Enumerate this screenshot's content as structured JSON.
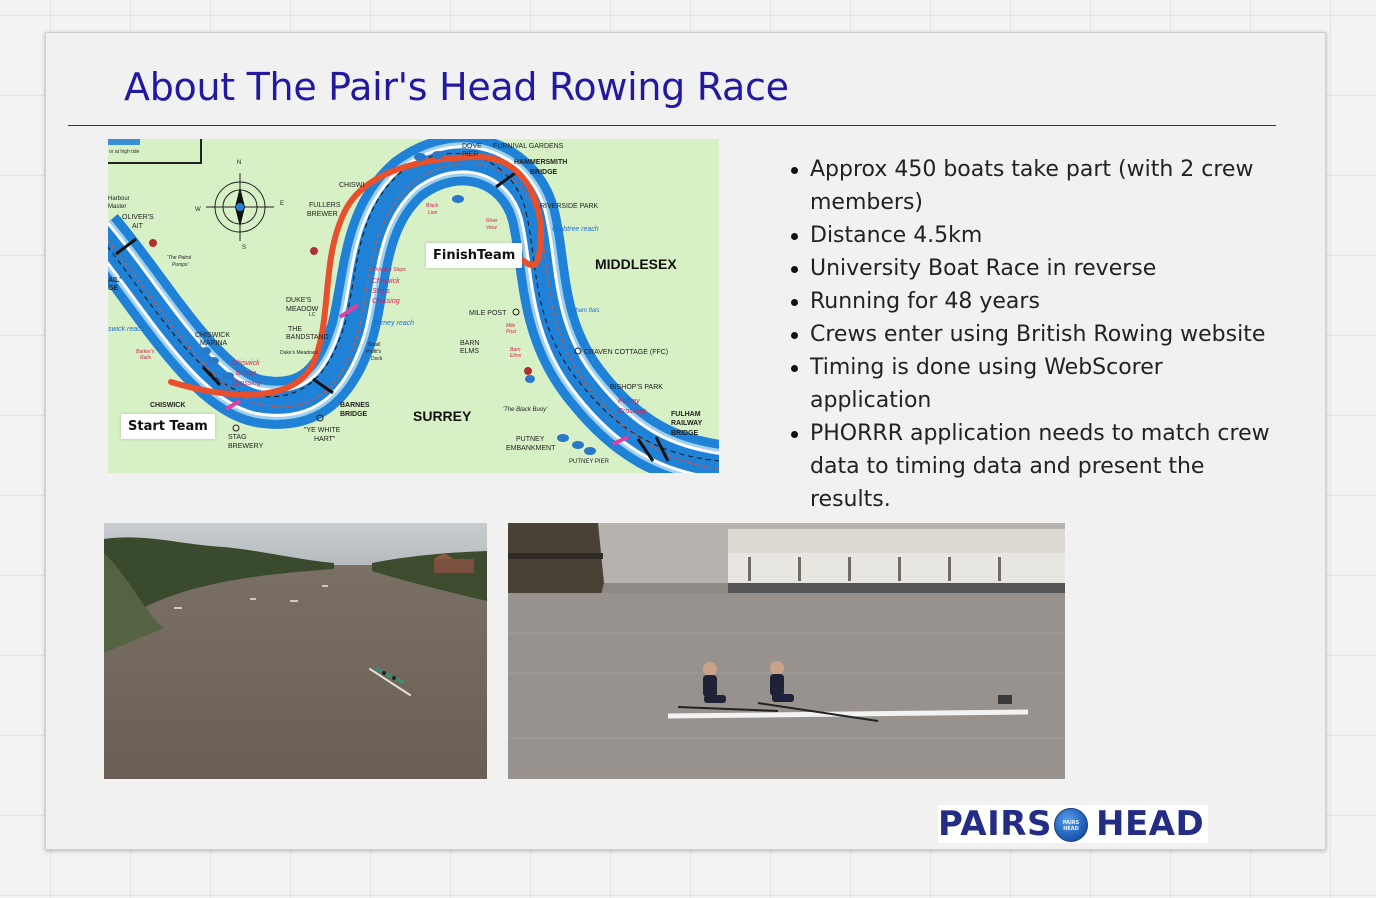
{
  "slide": {
    "title": "About The Pair's Head Rowing Race",
    "bullets": [
      "Approx 450 boats take part (with 2 crew members)",
      "Distance 4.5km",
      "University Boat Race in reverse",
      "Running for 48 years",
      "Crews enter using British Rowing website",
      "Timing is done using WebScorer application",
      "PHORRR application needs to match crew data to timing data and present the results."
    ]
  },
  "map": {
    "callouts": {
      "start": "Start Team",
      "finish": "FinishTeam"
    },
    "route_color": "#e8502d",
    "river_color": "#1f82d6",
    "land_color": "#d8f0c5",
    "labels": {
      "middlesex": "MIDDLESEX",
      "surrey": "SURREY",
      "hammersmith": "HAMMERSMITH",
      "bridge1": "BRIDGE",
      "furnival": "FURNIVAL GARDENS",
      "dove": "DOVE",
      "pier": "PIER",
      "riverside": "RIVERSIDE PARK",
      "crabtree": "Crabtree reach",
      "chiswick_top": "CHISWI",
      "fullers": "FULLERS",
      "brewery": "BREWER",
      "chiswick_steps": "Chiswick Steps",
      "chiswick": "Chiswick",
      "steps": "Steps",
      "crossing": "Crossing",
      "corney": "Corney reach",
      "dukes": "DUKE'S",
      "meadow": "MEADOW",
      "the": "THE",
      "bandstand": "BANDSTAND",
      "mile_post": "MILE POST",
      "mile": "Mile",
      "post": "Post",
      "fulham_flats": "Fulham flats",
      "barn": "BARN",
      "elms": "ELMS",
      "barn_small": "Barn",
      "elms_small": "Elms",
      "craven": "CRAVEN COTTAGE (FFC)",
      "bishops": "BISHOP'S PARK",
      "putney": "Putney",
      "putney_crossing": "Crossing",
      "fulham": "FULHAM",
      "railway": "RAILWAY",
      "bridge2": "BRIDGE",
      "chiswick_marina": "CHISWICK",
      "marina": "MARINA",
      "chiswick_b": "Chiswick",
      "bridge_b": "Bridge",
      "crossing_b": "Crossing",
      "chiswick_main": "CHISWICK",
      "barnes": "BARNES",
      "barnes_bridge": "BRIDGE",
      "stag": "STAG",
      "stag_brewery": "BREWERY",
      "ye_white": "\"YE WHITE",
      "hart": "HART\"",
      "black_buoy": "'The Black Buoy'",
      "putney_emb": "PUTNEY",
      "embankment": "EMBANKMENT",
      "putney_pier": "PUTNEY PIER",
      "olivers": "OLIVER'S",
      "ait": "AIT",
      "harbour": "Harbour",
      "master": "Master",
      "high_tide": "or at high tide",
      "patrol": "'The Patrol",
      "pumps": "Pumps'",
      "barkers": "Barker's",
      "rails": "Rails",
      "wick_reach": "swick reach",
      "small": "Small",
      "profits": "Profit's",
      "dock": "Dock",
      "black": "Black",
      "lion": "Lion",
      "river_view": "River",
      "view": "View",
      "dukes_meadow": "Duke's Meadows",
      "north": "N",
      "south": "S",
      "east": "E",
      "west": "W",
      "ail": "AIL'",
      "ge": "GE",
      "lc": "LC"
    }
  },
  "photos": [
    {
      "name": "photo-river-aerial"
    },
    {
      "name": "photo-pair-rowing"
    }
  ],
  "logo": {
    "left": "PAIRS",
    "right": "HEAD",
    "badge": "PAIRS HEAD"
  },
  "colors": {
    "title": "#2219a0",
    "rule": "#2a2aa5",
    "logo": "#232d84"
  }
}
